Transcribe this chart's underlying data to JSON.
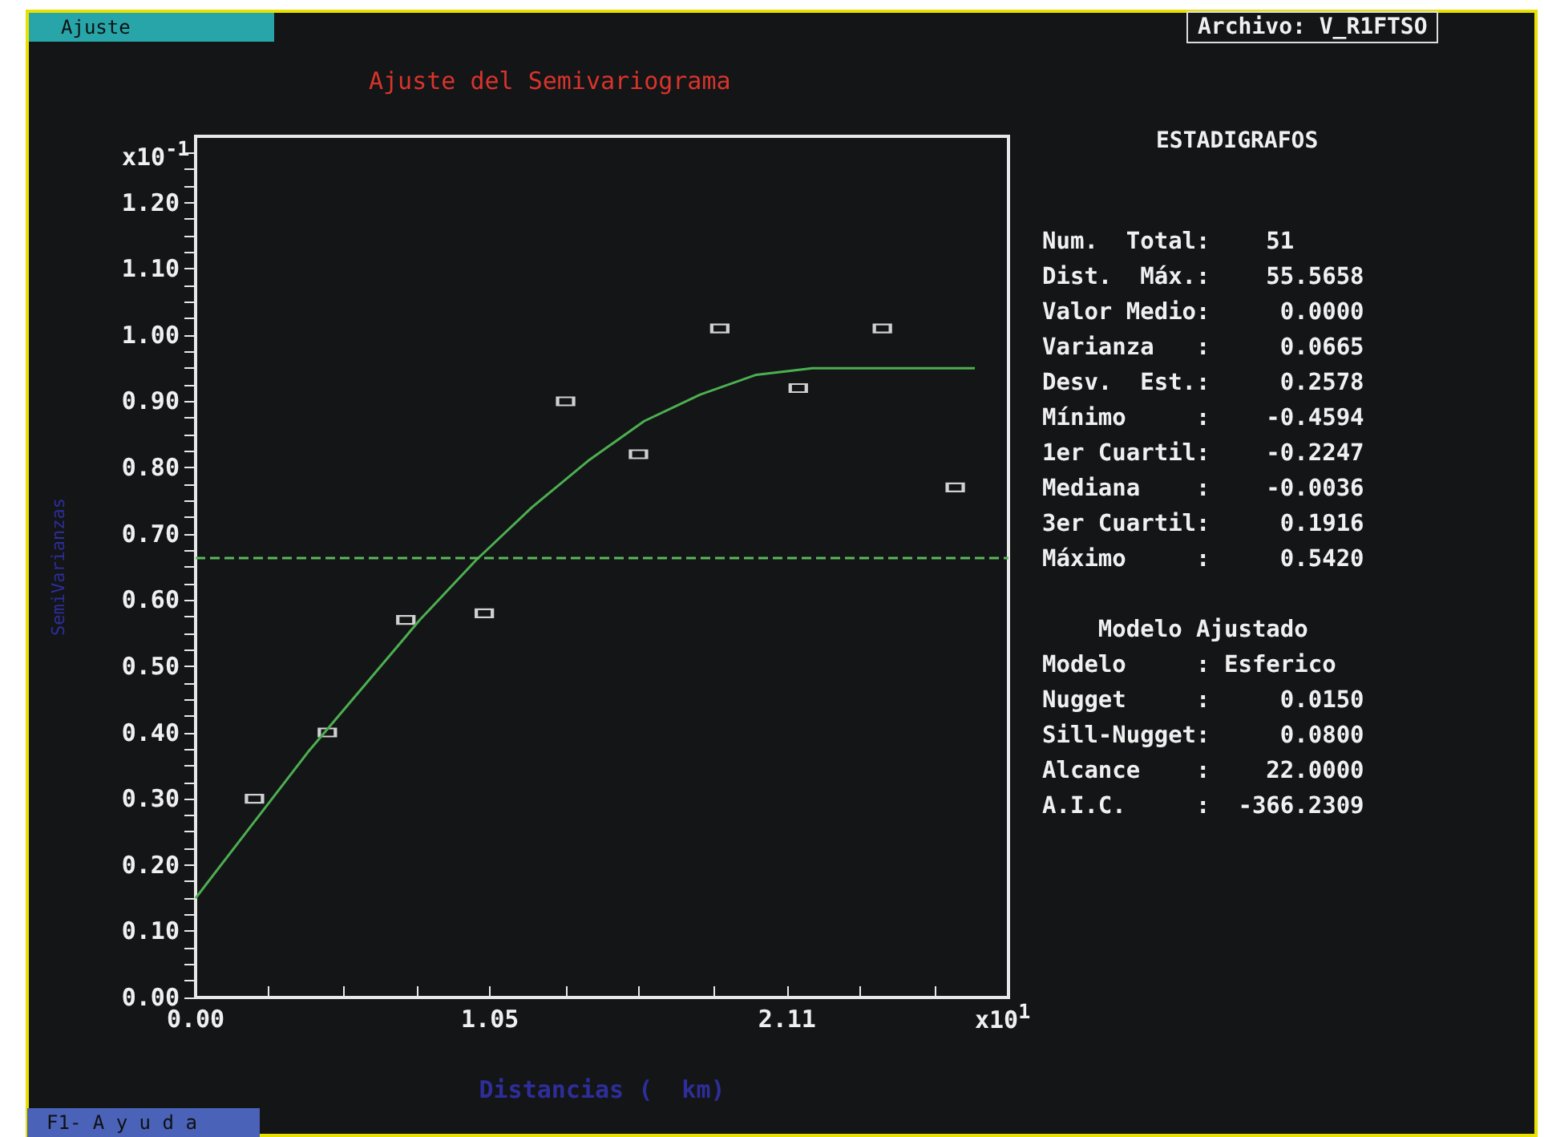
{
  "chart_data": {
    "type": "scatter",
    "title": "Ajuste del Semivariograma",
    "xlabel": "Distancias (  km)",
    "ylabel": "SemiVarianzas",
    "marker": "square",
    "grid": false,
    "legend": false,
    "xlim": [
      0,
      2.9
    ],
    "xticks": [
      {
        "value": 0,
        "label": "0.00"
      },
      {
        "value": 0.26,
        "label": null
      },
      {
        "value": 0.53,
        "label": null
      },
      {
        "value": 0.79,
        "label": null
      },
      1.05,
      {
        "value": 1.32,
        "label": null
      },
      {
        "value": 1.58,
        "label": null
      },
      {
        "value": 1.85,
        "label": null
      },
      2.11,
      {
        "value": 2.37,
        "label": null
      },
      {
        "value": 2.64,
        "label": null
      },
      {
        "value": 2.9,
        "label": null
      }
    ],
    "ylim": [
      0,
      1.3
    ],
    "yticks": [
      {
        "value": 0,
        "label": "0.00"
      },
      {
        "value": 0.025,
        "label": null
      },
      {
        "value": 0.05,
        "label": null
      },
      {
        "value": 0.075,
        "label": null
      },
      {
        "value": 0.1,
        "label": "0.10"
      },
      {
        "value": 0.125,
        "label": null
      },
      {
        "value": 0.15,
        "label": null
      },
      {
        "value": 0.175,
        "label": null
      },
      {
        "value": 0.2,
        "label": "0.20"
      },
      {
        "value": 0.225,
        "label": null
      },
      {
        "value": 0.25,
        "label": null
      },
      {
        "value": 0.275,
        "label": null
      },
      {
        "value": 0.3,
        "label": "0.30"
      },
      {
        "value": 0.325,
        "label": null
      },
      {
        "value": 0.35,
        "label": null
      },
      {
        "value": 0.375,
        "label": null
      },
      {
        "value": 0.4,
        "label": "0.40"
      },
      {
        "value": 0.425,
        "label": null
      },
      {
        "value": 0.45,
        "label": null
      },
      {
        "value": 0.475,
        "label": null
      },
      {
        "value": 0.5,
        "label": "0.50"
      },
      {
        "value": 0.525,
        "label": null
      },
      {
        "value": 0.55,
        "label": null
      },
      {
        "value": 0.575,
        "label": null
      },
      {
        "value": 0.6,
        "label": "0.60"
      },
      {
        "value": 0.625,
        "label": null
      },
      {
        "value": 0.65,
        "label": null
      },
      {
        "value": 0.675,
        "label": null
      },
      {
        "value": 0.7,
        "label": "0.70"
      },
      {
        "value": 0.725,
        "label": null
      },
      {
        "value": 0.75,
        "label": null
      },
      {
        "value": 0.775,
        "label": null
      },
      {
        "value": 0.8,
        "label": "0.80"
      },
      {
        "value": 0.825,
        "label": null
      },
      {
        "value": 0.85,
        "label": null
      },
      {
        "value": 0.875,
        "label": null
      },
      {
        "value": 0.9,
        "label": "0.90"
      },
      {
        "value": 0.925,
        "label": null
      },
      {
        "value": 0.95,
        "label": null
      },
      {
        "value": 0.975,
        "label": null
      },
      {
        "value": 1.0,
        "label": "1.00"
      },
      {
        "value": 1.025,
        "label": null
      },
      {
        "value": 1.05,
        "label": null
      },
      {
        "value": 1.075,
        "label": null
      },
      {
        "value": 1.1,
        "label": "1.10"
      },
      {
        "value": 1.125,
        "label": null
      },
      {
        "value": 1.15,
        "label": null
      },
      {
        "value": 1.175,
        "label": null
      },
      {
        "value": 1.2,
        "label": "1.20"
      },
      {
        "value": 1.225,
        "label": null
      },
      {
        "value": 1.25,
        "label": null
      },
      {
        "value": 1.275,
        "label": null
      }
    ],
    "series": [
      {
        "color": "#ffffff",
        "x": [
          0.21,
          0.47,
          0.75,
          1.03,
          1.32,
          1.58,
          1.87,
          2.15,
          2.45,
          2.71
        ],
        "values": [
          0.3,
          0.4,
          0.57,
          0.58,
          0.9,
          0.82,
          1.01,
          0.92,
          1.01,
          0.77
        ]
      },
      {
        "type": "line",
        "color": "#4caf50",
        "marker": "none",
        "x": [
          0,
          0.2,
          0.4,
          0.6,
          0.8,
          1.0,
          1.2,
          1.4,
          1.6,
          1.8,
          2.0,
          2.2,
          2.78
        ],
        "values": [
          0.15,
          0.26,
          0.37,
          0.47,
          0.57,
          0.66,
          0.74,
          0.81,
          0.87,
          0.91,
          0.94,
          0.95,
          0.95
        ]
      }
    ],
    "ref_lines": [
      {
        "axis": "y",
        "value": 0.665,
        "color": "#5cb85c",
        "line_style": "dashed"
      }
    ],
    "annotations": [
      "Ajuste",
      "Archivo: V_R1FTSO",
      "F1- A y u d a",
      "x10$^{-1}$",
      "x10$^{1}$",
      "ESTADIGRAFOS",
      "Num.  Total:    51",
      "Dist.  Máx.:    55.5658",
      "Valor Medio:     0.0000",
      "Varianza   :     0.0665",
      "Desv.  Est.:     0.2578",
      "Mínimo     :    -0.4594",
      "1er Cuartil:    -0.2247",
      "Mediana    :    -0.0036",
      "3er Cuartil:     0.1916",
      "Máximo     :     0.5420",
      "    Modelo Ajustado",
      "Modelo     : Esferico",
      "Nugget     :     0.0150",
      "Sill-Nugget:     0.0800",
      "Alcance    :    22.0000",
      "A.I.C.     :  -366.2309"
    ]
  }
}
